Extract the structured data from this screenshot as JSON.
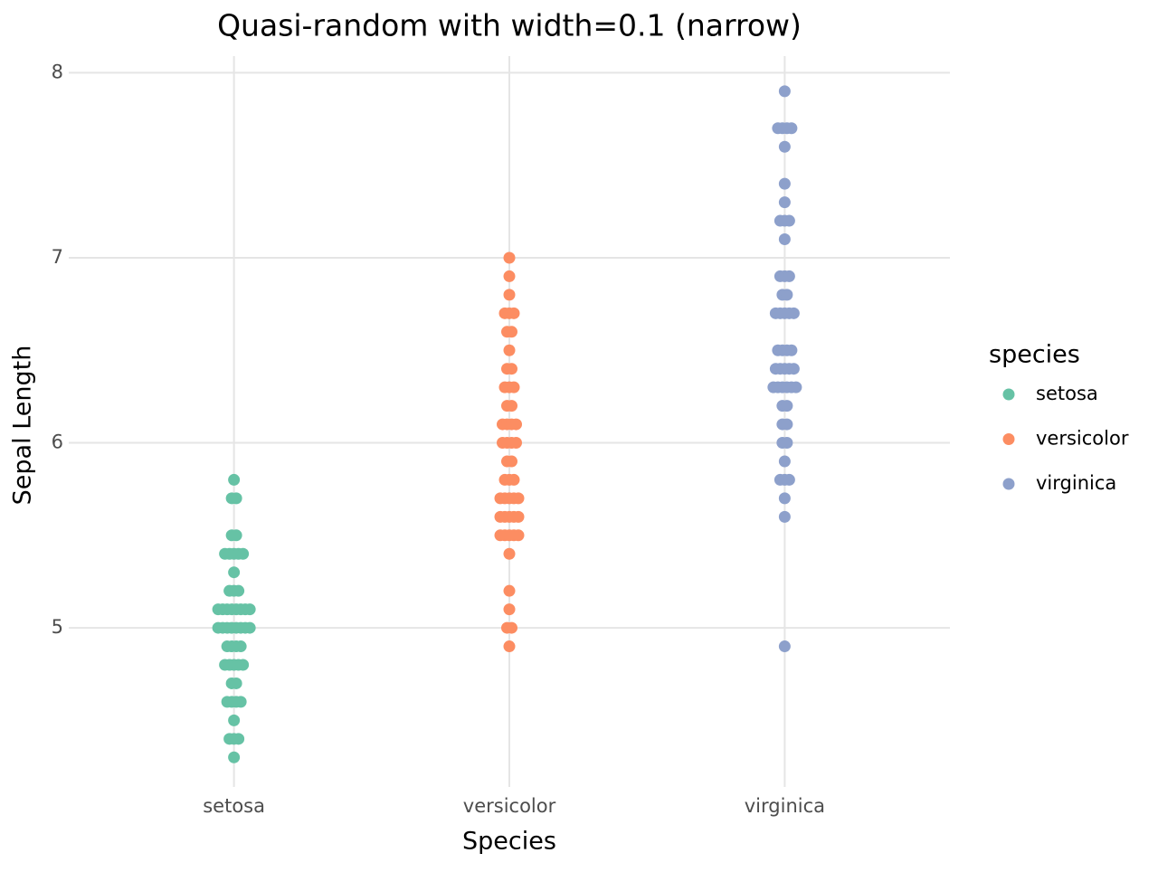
{
  "chart_data": {
    "type": "strip",
    "title": "Quasi-random with width=0.1 (narrow)",
    "x_label": "Species",
    "y_label": "Sepal Length",
    "legend_title": "species",
    "legend_position": "right",
    "grid": true,
    "categories": [
      "setosa",
      "versicolor",
      "virginica"
    ],
    "ylim": [
      4.14,
      8.09
    ],
    "yticks": [
      5,
      6,
      7,
      8
    ],
    "series": [
      {
        "name": "setosa",
        "color": "#66c2a5",
        "values": [
          5.1,
          4.9,
          4.7,
          4.6,
          5.0,
          5.4,
          4.6,
          5.0,
          4.4,
          4.9,
          5.4,
          4.8,
          4.8,
          4.3,
          5.8,
          5.7,
          5.4,
          5.1,
          5.7,
          5.1,
          5.4,
          5.1,
          4.6,
          5.1,
          4.8,
          5.0,
          5.0,
          5.2,
          5.2,
          4.7,
          4.8,
          5.4,
          5.2,
          5.5,
          4.9,
          5.0,
          5.5,
          4.9,
          4.4,
          5.1,
          5.0,
          4.5,
          4.4,
          5.0,
          5.1,
          4.8,
          5.1,
          4.6,
          5.3,
          5.0
        ]
      },
      {
        "name": "versicolor",
        "color": "#fc8d62",
        "values": [
          7.0,
          6.4,
          6.9,
          5.5,
          6.5,
          5.7,
          6.3,
          4.9,
          6.6,
          5.2,
          5.0,
          5.9,
          6.0,
          6.1,
          5.6,
          6.7,
          5.6,
          5.8,
          6.2,
          5.6,
          5.9,
          6.1,
          6.3,
          6.1,
          6.4,
          6.6,
          6.8,
          6.7,
          6.0,
          5.7,
          5.5,
          5.5,
          5.8,
          6.0,
          5.4,
          6.0,
          6.7,
          6.3,
          5.6,
          5.5,
          5.5,
          6.1,
          5.8,
          5.0,
          5.6,
          5.7,
          5.7,
          6.2,
          5.1,
          5.7
        ]
      },
      {
        "name": "virginica",
        "color": "#8da0cb",
        "values": [
          6.3,
          5.8,
          7.1,
          6.3,
          6.5,
          7.6,
          4.9,
          7.3,
          6.7,
          7.2,
          6.5,
          6.4,
          6.8,
          5.7,
          5.8,
          6.4,
          6.5,
          7.7,
          7.7,
          6.0,
          6.9,
          5.6,
          7.7,
          6.3,
          6.7,
          7.2,
          6.2,
          6.1,
          6.4,
          7.2,
          7.4,
          7.9,
          6.4,
          6.3,
          6.1,
          7.7,
          6.3,
          6.4,
          6.0,
          6.9,
          6.7,
          6.9,
          5.8,
          6.8,
          6.7,
          6.7,
          6.3,
          6.5,
          6.2,
          5.9
        ]
      }
    ]
  }
}
